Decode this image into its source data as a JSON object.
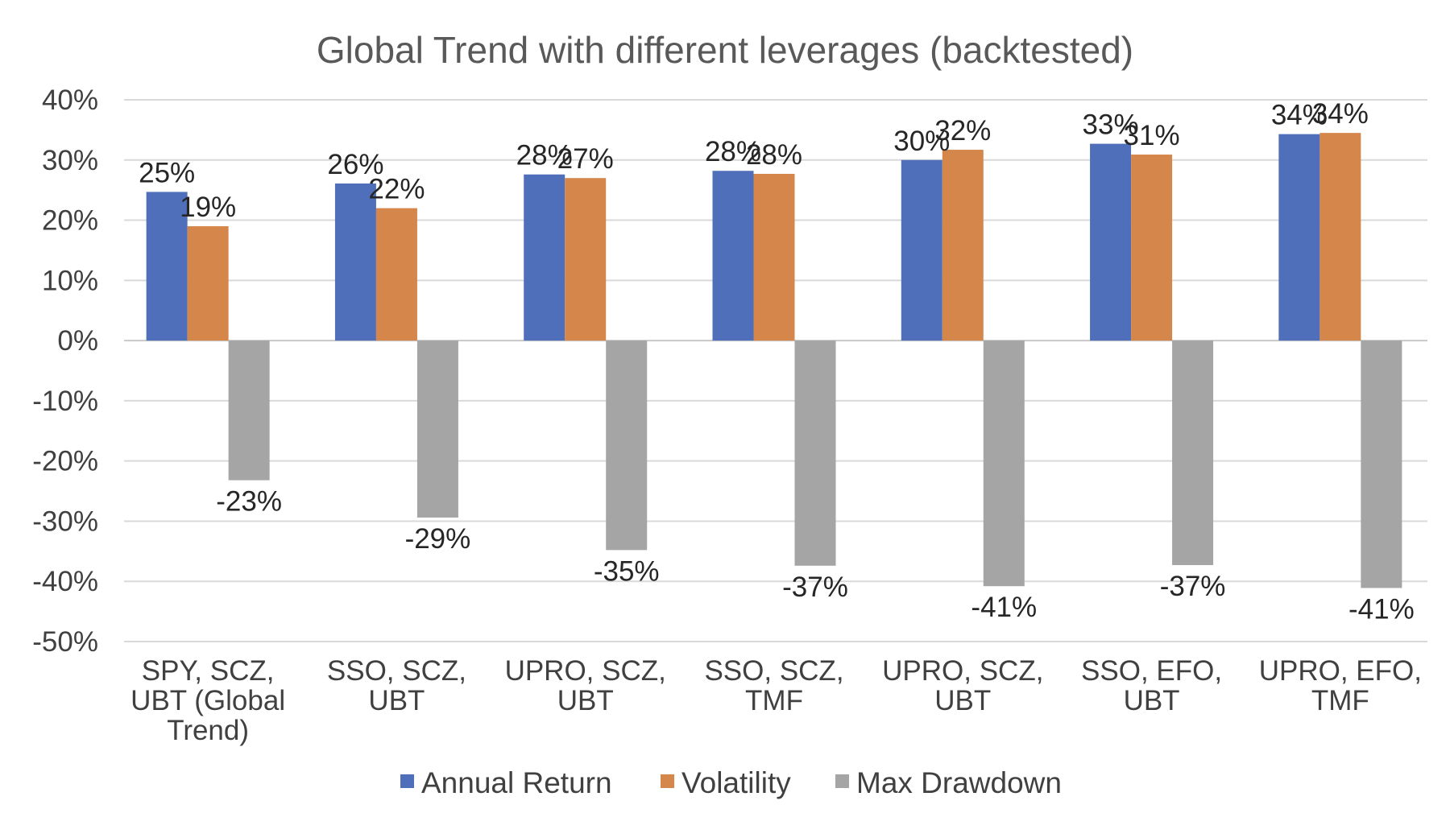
{
  "chart_data": {
    "type": "bar",
    "title": "Global Trend with different leverages (backtested)",
    "xlabel": "",
    "ylabel": "",
    "ylim": [
      -50,
      40
    ],
    "yticks": [
      40,
      30,
      20,
      10,
      0,
      -10,
      -20,
      -30,
      -40,
      -50
    ],
    "ytick_labels": [
      "40%",
      "30%",
      "20%",
      "10%",
      "0%",
      "-10%",
      "-20%",
      "-30%",
      "-40%",
      "-50%"
    ],
    "grid": true,
    "legend_position": "bottom",
    "categories": [
      [
        "SPY, SCZ,",
        "UBT (Global",
        "Trend)"
      ],
      [
        "SSO, SCZ,",
        "UBT"
      ],
      [
        "UPRO, SCZ,",
        "UBT"
      ],
      [
        "SSO, SCZ,",
        "TMF"
      ],
      [
        "UPRO, SCZ,",
        "UBT"
      ],
      [
        "SSO, EFO,",
        "UBT"
      ],
      [
        "UPRO, EFO,",
        "TMF"
      ]
    ],
    "series": [
      {
        "name": "Annual Return",
        "color": "#4f6fba",
        "values": [
          24.7,
          26.1,
          27.6,
          28.2,
          30.0,
          32.7,
          34.3
        ],
        "labels": [
          "25%",
          "26%",
          "28%",
          "28%",
          "30%",
          "33%",
          "34%"
        ]
      },
      {
        "name": "Volatility",
        "color": "#d4864b",
        "values": [
          19.0,
          22.0,
          27.0,
          27.7,
          31.7,
          30.9,
          34.5
        ],
        "labels": [
          "19%",
          "22%",
          "27%",
          "28%",
          "32%",
          "31%",
          "34%"
        ]
      },
      {
        "name": "Max Drawdown",
        "color": "#a5a5a5",
        "values": [
          -23.2,
          -29.4,
          -34.8,
          -37.4,
          -40.8,
          -37.3,
          -41.1
        ],
        "labels": [
          "-23%",
          "-29%",
          "-35%",
          "-37%",
          "-41%",
          "-37%",
          "-41%"
        ]
      }
    ]
  }
}
